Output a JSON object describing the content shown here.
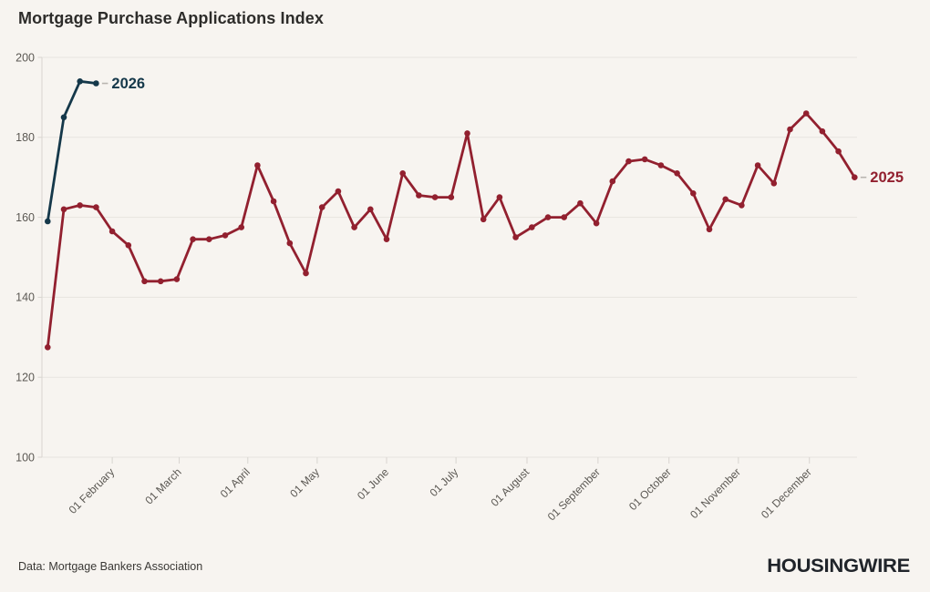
{
  "header": {
    "title": "Mortgage Purchase Applications Index"
  },
  "footer": {
    "source": "Data: Mortgage Bankers Association",
    "brand": "HOUSINGWIRE"
  },
  "colors": {
    "background": "#f7f4f0",
    "gridline": "#e7e4df",
    "axis": "#d8d5d0",
    "tick_text": "#5b5853",
    "title_text": "#2d2c2a",
    "series_2025": "#92202f",
    "series_2026": "#15384a",
    "leader_dash": "#b9b5b0"
  },
  "chart_data": {
    "type": "line",
    "title": "Mortgage Purchase Applications Index",
    "xlabel": "",
    "ylabel": "",
    "ylim": [
      100,
      200
    ],
    "y_ticks": [
      100,
      120,
      140,
      160,
      180,
      200
    ],
    "grid": "horizontal",
    "legend_position": "end-of-line",
    "x_unit": "weeks from early January",
    "x_ticks": [
      {
        "label": "01 February",
        "week": 4.0
      },
      {
        "label": "01 March",
        "week": 8.15
      },
      {
        "label": "01 April",
        "week": 12.4
      },
      {
        "label": "01 May",
        "week": 16.7
      },
      {
        "label": "01 June",
        "week": 21.0
      },
      {
        "label": "01 July",
        "week": 25.3
      },
      {
        "label": "01 August",
        "week": 29.7
      },
      {
        "label": "01 September",
        "week": 34.1
      },
      {
        "label": "01 October",
        "week": 38.5
      },
      {
        "label": "01 November",
        "week": 42.8
      },
      {
        "label": "01 December",
        "week": 47.2
      }
    ],
    "series": [
      {
        "name": "2025",
        "color": "#92202f",
        "start_week": 0,
        "values": [
          127.5,
          162,
          163,
          162.5,
          156.5,
          153,
          144,
          144,
          144.5,
          154.5,
          154.5,
          155.5,
          157.5,
          173,
          164,
          153.5,
          146,
          162.5,
          166.5,
          157.5,
          162,
          154.5,
          171,
          165.5,
          165,
          165,
          181,
          159.5,
          165,
          155,
          157.5,
          160,
          160,
          163.5,
          158.5,
          169,
          174,
          174.5,
          173,
          171,
          166,
          157,
          164.5,
          163,
          173,
          168.5,
          182,
          186,
          181.5,
          176.5,
          170
        ]
      },
      {
        "name": "2026",
        "color": "#15384a",
        "start_week": 0,
        "values": [
          159,
          185,
          194,
          193.5
        ]
      }
    ]
  }
}
